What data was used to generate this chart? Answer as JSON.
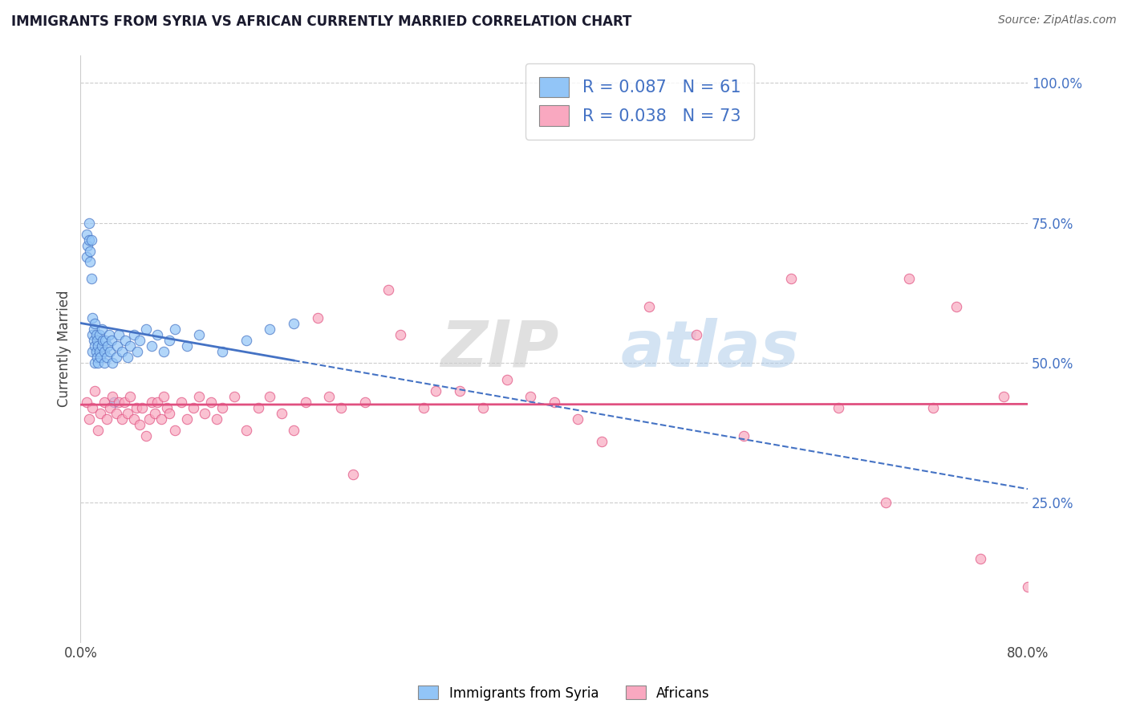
{
  "title": "IMMIGRANTS FROM SYRIA VS AFRICAN CURRENTLY MARRIED CORRELATION CHART",
  "source": "Source: ZipAtlas.com",
  "ylabel": "Currently Married",
  "xlim": [
    0.0,
    0.8
  ],
  "ylim": [
    0.0,
    1.05
  ],
  "xticks": [
    0.0,
    0.2,
    0.4,
    0.6,
    0.8
  ],
  "xticklabels": [
    "0.0%",
    "",
    "",
    "",
    "80.0%"
  ],
  "ytick_positions": [
    0.25,
    0.5,
    0.75,
    1.0
  ],
  "yticklabels": [
    "25.0%",
    "50.0%",
    "75.0%",
    "100.0%"
  ],
  "legend_syria": "Immigrants from Syria",
  "legend_african": "Africans",
  "R_syria": 0.087,
  "N_syria": 61,
  "R_african": 0.038,
  "N_african": 73,
  "color_syria": "#92C5F7",
  "color_african": "#F9A8C0",
  "trendline_syria": "#4472C4",
  "trendline_african": "#E05080",
  "watermark_zip": "ZIP",
  "watermark_atlas": "atlas",
  "background_color": "#ffffff",
  "syria_x": [
    0.005,
    0.005,
    0.006,
    0.007,
    0.007,
    0.008,
    0.008,
    0.009,
    0.009,
    0.01,
    0.01,
    0.01,
    0.011,
    0.011,
    0.012,
    0.012,
    0.012,
    0.013,
    0.013,
    0.014,
    0.014,
    0.015,
    0.015,
    0.016,
    0.016,
    0.017,
    0.018,
    0.018,
    0.019,
    0.02,
    0.02,
    0.021,
    0.022,
    0.023,
    0.024,
    0.025,
    0.026,
    0.027,
    0.028,
    0.03,
    0.031,
    0.032,
    0.035,
    0.038,
    0.04,
    0.042,
    0.045,
    0.048,
    0.05,
    0.055,
    0.06,
    0.065,
    0.07,
    0.075,
    0.08,
    0.09,
    0.1,
    0.12,
    0.14,
    0.16,
    0.18
  ],
  "syria_y": [
    0.73,
    0.69,
    0.71,
    0.72,
    0.75,
    0.68,
    0.7,
    0.65,
    0.72,
    0.55,
    0.52,
    0.58,
    0.54,
    0.56,
    0.5,
    0.53,
    0.57,
    0.52,
    0.55,
    0.51,
    0.54,
    0.5,
    0.53,
    0.52,
    0.55,
    0.51,
    0.53,
    0.56,
    0.54,
    0.5,
    0.52,
    0.54,
    0.51,
    0.53,
    0.55,
    0.52,
    0.54,
    0.5,
    0.43,
    0.51,
    0.53,
    0.55,
    0.52,
    0.54,
    0.51,
    0.53,
    0.55,
    0.52,
    0.54,
    0.56,
    0.53,
    0.55,
    0.52,
    0.54,
    0.56,
    0.53,
    0.55,
    0.52,
    0.54,
    0.56,
    0.57
  ],
  "african_x": [
    0.005,
    0.007,
    0.01,
    0.012,
    0.015,
    0.017,
    0.02,
    0.022,
    0.025,
    0.027,
    0.03,
    0.032,
    0.035,
    0.037,
    0.04,
    0.042,
    0.045,
    0.047,
    0.05,
    0.052,
    0.055,
    0.058,
    0.06,
    0.063,
    0.065,
    0.068,
    0.07,
    0.073,
    0.075,
    0.08,
    0.085,
    0.09,
    0.095,
    0.1,
    0.105,
    0.11,
    0.115,
    0.12,
    0.13,
    0.14,
    0.15,
    0.16,
    0.17,
    0.18,
    0.19,
    0.2,
    0.21,
    0.22,
    0.23,
    0.24,
    0.26,
    0.27,
    0.29,
    0.3,
    0.32,
    0.34,
    0.36,
    0.38,
    0.4,
    0.42,
    0.44,
    0.48,
    0.52,
    0.56,
    0.6,
    0.64,
    0.68,
    0.7,
    0.72,
    0.74,
    0.76,
    0.78,
    0.8
  ],
  "african_y": [
    0.43,
    0.4,
    0.42,
    0.45,
    0.38,
    0.41,
    0.43,
    0.4,
    0.42,
    0.44,
    0.41,
    0.43,
    0.4,
    0.43,
    0.41,
    0.44,
    0.4,
    0.42,
    0.39,
    0.42,
    0.37,
    0.4,
    0.43,
    0.41,
    0.43,
    0.4,
    0.44,
    0.42,
    0.41,
    0.38,
    0.43,
    0.4,
    0.42,
    0.44,
    0.41,
    0.43,
    0.4,
    0.42,
    0.44,
    0.38,
    0.42,
    0.44,
    0.41,
    0.38,
    0.43,
    0.58,
    0.44,
    0.42,
    0.3,
    0.43,
    0.63,
    0.55,
    0.42,
    0.45,
    0.45,
    0.42,
    0.47,
    0.44,
    0.43,
    0.4,
    0.36,
    0.6,
    0.55,
    0.37,
    0.65,
    0.42,
    0.25,
    0.65,
    0.42,
    0.6,
    0.15,
    0.44,
    0.1
  ]
}
